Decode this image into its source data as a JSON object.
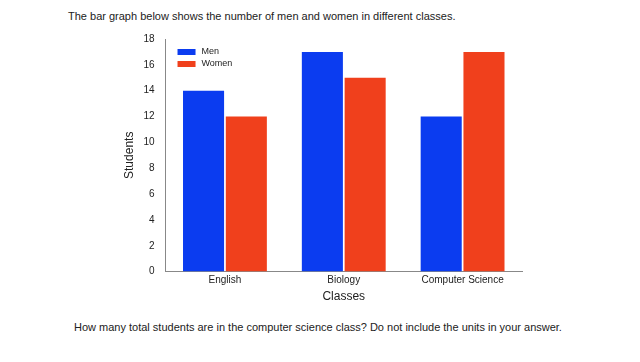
{
  "question": "How many total students are in the computer science class? Do not include the units in your answer.",
  "chart_data": {
    "type": "bar",
    "title": "The bar graph below shows the number of men and women in different classes.",
    "x_label": "Classes",
    "y_label": "Students",
    "categories": [
      "English",
      "Biology",
      "Computer Science"
    ],
    "series": [
      {
        "name": "Men",
        "color": "#0b3cf0",
        "values": [
          14,
          17,
          12
        ]
      },
      {
        "name": "Women",
        "color": "#f0401c",
        "values": [
          12,
          15,
          17
        ]
      }
    ],
    "ylim": [
      0,
      18
    ],
    "yticks": [
      0,
      2,
      4,
      6,
      8,
      10,
      12,
      14,
      16,
      18
    ],
    "grid": false,
    "legend": "upper left"
  }
}
